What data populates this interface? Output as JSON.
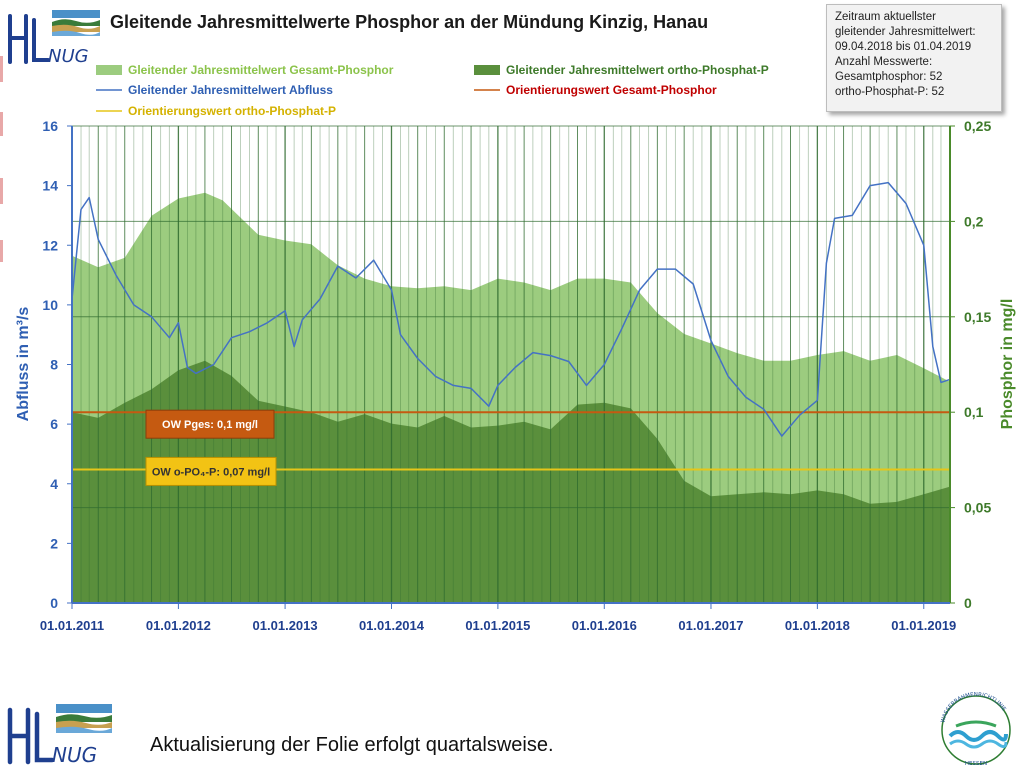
{
  "header": {
    "title": "Gleitende Jahresmittelwerte Phosphor an der Mündung Kinzig, Hanau",
    "logo_text": "NUG",
    "logo_letters": "HL"
  },
  "infobox": {
    "line1": "Zeitraum aktuellster",
    "line2": "gleitender Jahresmittelwert:",
    "line3": "09.04.2018 bis 01.04.2019",
    "line4": "Anzahl Messwerte:",
    "line5": "Gesamtphosphor: 52",
    "line6": "ortho-Phosphat-P: 52"
  },
  "footer": {
    "text": "Aktualisierung der Folie erfolgt quartalsweise.",
    "seal_text_top": "WASSERRAHMENRICHTLINIE",
    "seal_text_bottom": "HESSEN"
  },
  "chart_data": {
    "type": "area",
    "title": "Gleitende Jahresmittelwerte Phosphor an der Mündung Kinzig, Hanau",
    "xlabel": "",
    "ylabel_left": "Abfluss in m³/s",
    "ylabel_right": "Phosphor in mg/l",
    "ylim_left": [
      0,
      16
    ],
    "ylim_right": [
      0,
      0.25
    ],
    "yticks_left": [
      "0",
      "2",
      "4",
      "6",
      "8",
      "10",
      "12",
      "14",
      "16"
    ],
    "yticks_right": [
      "0",
      "0,05",
      "0,1",
      "0,15",
      "0,2",
      "0,25"
    ],
    "xticks": [
      "01.01.2011",
      "01.01.2012",
      "01.01.2013",
      "01.01.2014",
      "01.01.2015",
      "01.01.2016",
      "01.01.2017",
      "01.01.2018",
      "01.01.2019"
    ],
    "x_range": [
      "2011-01-01",
      "2019-04-01"
    ],
    "grid": true,
    "legend_position": "top",
    "legend": [
      {
        "label": "Gleitender Jahresmittelwert Gesamt-Phosphor",
        "kind": "area",
        "color": "#9ccc7f",
        "text_color": "#8bc34a"
      },
      {
        "label": "Gleitender Jahresmittelwert ortho-Phosphat-P",
        "kind": "area",
        "color": "#5a8f3c",
        "text_color": "#3e7a2a"
      },
      {
        "label": "Gleitender Jahresmittelwert Abfluss",
        "kind": "line",
        "color": "#4472c4",
        "text_color": "#2f5fb3"
      },
      {
        "label": "Orientierungswert Gesamt-Phosphor",
        "kind": "line",
        "color": "#c55a11",
        "text_color": "#c00000"
      },
      {
        "label": "Orientierungswert ortho-Phosphat-P",
        "kind": "line",
        "color": "#e6c619",
        "text_color": "#d4b200"
      }
    ],
    "annotations": [
      {
        "text": "OW Pges: 0,1 mg/l",
        "color": "#c55a11"
      },
      {
        "text": "OW o-PO₄-P: 0,07 mg/l",
        "color": "#f2c314"
      }
    ],
    "thresholds": {
      "gesamt_phosphor": 0.1,
      "ortho_phosphat": 0.07
    },
    "series": [
      {
        "name": "Gleitender Jahresmittelwert Gesamt-Phosphor",
        "axis": "right",
        "x": [
          "2011-01-01",
          "2011-04-01",
          "2011-07-01",
          "2011-10-01",
          "2012-01-01",
          "2012-04-01",
          "2012-06-01",
          "2012-10-01",
          "2013-01-01",
          "2013-04-01",
          "2013-07-01",
          "2013-10-01",
          "2014-01-01",
          "2014-04-01",
          "2014-07-01",
          "2014-10-01",
          "2015-01-01",
          "2015-04-01",
          "2015-07-01",
          "2015-10-01",
          "2016-01-01",
          "2016-04-01",
          "2016-07-01",
          "2016-10-01",
          "2017-01-01",
          "2017-04-01",
          "2017-07-01",
          "2017-10-01",
          "2018-01-01",
          "2018-04-01",
          "2018-07-01",
          "2018-10-01",
          "2019-01-01",
          "2019-04-01"
        ],
        "values": [
          0.182,
          0.176,
          0.181,
          0.203,
          0.212,
          0.215,
          0.211,
          0.193,
          0.19,
          0.188,
          0.177,
          0.17,
          0.166,
          0.165,
          0.166,
          0.164,
          0.17,
          0.168,
          0.164,
          0.17,
          0.17,
          0.168,
          0.152,
          0.141,
          0.136,
          0.131,
          0.127,
          0.127,
          0.13,
          0.132,
          0.127,
          0.13,
          0.123,
          0.116
        ]
      },
      {
        "name": "Gleitender Jahresmittelwert ortho-Phosphat-P",
        "axis": "right",
        "x": [
          "2011-01-01",
          "2011-04-01",
          "2011-07-01",
          "2011-10-01",
          "2012-01-01",
          "2012-04-01",
          "2012-07-01",
          "2012-10-01",
          "2013-01-01",
          "2013-04-01",
          "2013-07-01",
          "2013-10-01",
          "2014-01-01",
          "2014-04-01",
          "2014-07-01",
          "2014-10-01",
          "2015-01-01",
          "2015-04-01",
          "2015-07-01",
          "2015-10-01",
          "2016-01-01",
          "2016-04-01",
          "2016-07-01",
          "2016-10-01",
          "2017-01-01",
          "2017-04-01",
          "2017-07-01",
          "2017-10-01",
          "2018-01-01",
          "2018-04-01",
          "2018-07-01",
          "2018-10-01",
          "2019-01-01",
          "2019-04-01"
        ],
        "values": [
          0.1,
          0.097,
          0.105,
          0.112,
          0.122,
          0.127,
          0.119,
          0.106,
          0.103,
          0.1,
          0.095,
          0.099,
          0.094,
          0.092,
          0.098,
          0.092,
          0.093,
          0.095,
          0.091,
          0.104,
          0.105,
          0.102,
          0.086,
          0.064,
          0.056,
          0.057,
          0.058,
          0.057,
          0.059,
          0.057,
          0.052,
          0.053,
          0.057,
          0.061
        ]
      },
      {
        "name": "Gleitender Jahresmittelwert Abfluss",
        "axis": "left",
        "x": [
          "2011-01-01",
          "2011-02-01",
          "2011-03-01",
          "2011-04-01",
          "2011-06-01",
          "2011-08-01",
          "2011-10-01",
          "2011-12-01",
          "2012-01-01",
          "2012-02-01",
          "2012-03-01",
          "2012-05-01",
          "2012-07-01",
          "2012-09-01",
          "2012-11-01",
          "2013-01-01",
          "2013-02-01",
          "2013-03-01",
          "2013-05-01",
          "2013-07-01",
          "2013-09-01",
          "2013-11-01",
          "2014-01-01",
          "2014-02-01",
          "2014-04-01",
          "2014-06-01",
          "2014-08-01",
          "2014-10-01",
          "2014-12-01",
          "2015-01-01",
          "2015-03-01",
          "2015-05-01",
          "2015-07-01",
          "2015-09-01",
          "2015-11-01",
          "2016-01-01",
          "2016-03-01",
          "2016-05-01",
          "2016-07-01",
          "2016-09-01",
          "2016-11-01",
          "2017-01-01",
          "2017-03-01",
          "2017-05-01",
          "2017-07-01",
          "2017-09-01",
          "2017-11-01",
          "2018-01-01",
          "2018-02-01",
          "2018-03-01",
          "2018-05-01",
          "2018-07-01",
          "2018-09-01",
          "2018-11-01",
          "2019-01-01",
          "2019-02-01",
          "2019-03-01",
          "2019-04-01"
        ],
        "values": [
          10.2,
          13.2,
          13.6,
          12.2,
          11,
          10,
          9.6,
          8.9,
          9.4,
          7.9,
          7.7,
          8,
          8.9,
          9.1,
          9.4,
          9.8,
          8.6,
          9.5,
          10.2,
          11.3,
          10.9,
          11.5,
          10.5,
          9,
          8.2,
          7.6,
          7.3,
          7.2,
          6.6,
          7.3,
          7.9,
          8.4,
          8.3,
          8.1,
          7.3,
          8.0,
          9.2,
          10.5,
          11.2,
          11.2,
          10.7,
          8.8,
          7.6,
          6.9,
          6.5,
          5.6,
          6.3,
          6.8,
          11.4,
          12.9,
          13.0,
          14.0,
          14.1,
          13.4,
          12.0,
          8.6,
          7.4,
          7.5
        ]
      }
    ]
  }
}
